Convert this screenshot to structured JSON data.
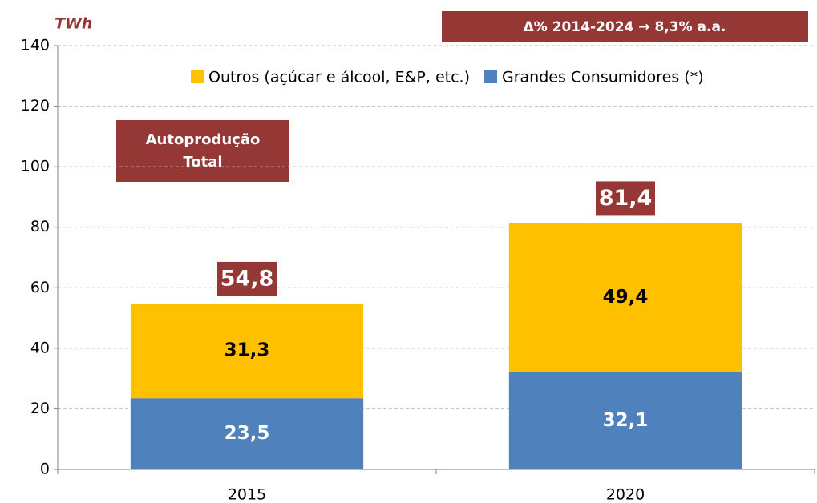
{
  "chart_data": {
    "type": "stacked_bar",
    "y_label": "TWh",
    "annotations": [
      "Δ% 2014-2024 → 8,3% a.a.",
      "Autoprodução",
      "Total"
    ],
    "categories": [
      "2015",
      "2020"
    ],
    "series": [
      {
        "name": "Grandes Consumidores (*)",
        "color": "#4f81bd",
        "values": [
          23.5,
          32.1
        ],
        "value_labels": [
          "23,5",
          "32,1"
        ]
      },
      {
        "name": "Outros (açúcar e álcool, E&P, etc.)",
        "color": "#ffc000",
        "values": [
          31.3,
          49.4
        ],
        "value_labels": [
          "31,3",
          "49,4"
        ]
      }
    ],
    "totals": [
      54.8,
      81.4
    ],
    "total_labels": [
      "54,8",
      "81,4"
    ],
    "ylim": [
      0,
      140
    ],
    "yticks": [
      0,
      20,
      40,
      60,
      80,
      100,
      120,
      140
    ],
    "grid": true
  }
}
